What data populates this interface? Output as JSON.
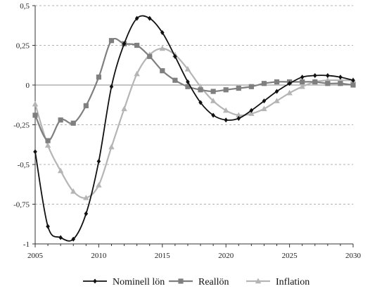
{
  "chart_data": {
    "type": "line",
    "x": [
      2005,
      2006,
      2007,
      2008,
      2009,
      2010,
      2011,
      2012,
      2013,
      2014,
      2015,
      2016,
      2017,
      2018,
      2019,
      2020,
      2021,
      2022,
      2023,
      2024,
      2025,
      2026,
      2027,
      2028,
      2029,
      2030
    ],
    "xlim": [
      2005,
      2030
    ],
    "ylim": [
      -1,
      0.5
    ],
    "xticks": [
      2005,
      2010,
      2015,
      2020,
      2025,
      2030
    ],
    "xtick_labels": [
      "2005",
      "2010",
      "2015",
      "2020",
      "2025",
      "2030"
    ],
    "yticks": [
      0.5,
      0.25,
      0,
      -0.25,
      -0.5,
      -0.75,
      -1
    ],
    "ytick_labels": [
      "0,5",
      "0,25",
      "0",
      "-0,25",
      "-0,5",
      "-0,75",
      "-1"
    ],
    "grid": "horizontal dashed",
    "legend_position": "bottom",
    "series": [
      {
        "name": "Nominell lön",
        "color": "#111111",
        "marker": "diamond",
        "values": [
          -0.42,
          -0.89,
          -0.96,
          -0.97,
          -0.81,
          -0.48,
          -0.01,
          0.26,
          0.42,
          0.42,
          0.33,
          0.18,
          0.02,
          -0.11,
          -0.19,
          -0.22,
          -0.21,
          -0.16,
          -0.1,
          -0.04,
          0.01,
          0.05,
          0.06,
          0.06,
          0.05,
          0.03
        ]
      },
      {
        "name": "Reallön",
        "color": "#7f7f7f",
        "marker": "square",
        "values": [
          -0.19,
          -0.35,
          -0.22,
          -0.24,
          -0.13,
          0.05,
          0.28,
          0.26,
          0.25,
          0.18,
          0.09,
          0.03,
          -0.01,
          -0.03,
          -0.04,
          -0.03,
          -0.02,
          -0.01,
          0.01,
          0.02,
          0.02,
          0.02,
          0.02,
          0.01,
          0.01,
          0.0
        ]
      },
      {
        "name": "Inflation",
        "color": "#b5b5b5",
        "marker": "triangle",
        "values": [
          -0.12,
          -0.38,
          -0.54,
          -0.67,
          -0.71,
          -0.63,
          -0.39,
          -0.15,
          0.07,
          0.19,
          0.23,
          0.19,
          0.1,
          -0.01,
          -0.1,
          -0.16,
          -0.19,
          -0.18,
          -0.15,
          -0.1,
          -0.05,
          -0.01,
          0.02,
          0.03,
          0.03,
          0.03
        ]
      }
    ]
  }
}
